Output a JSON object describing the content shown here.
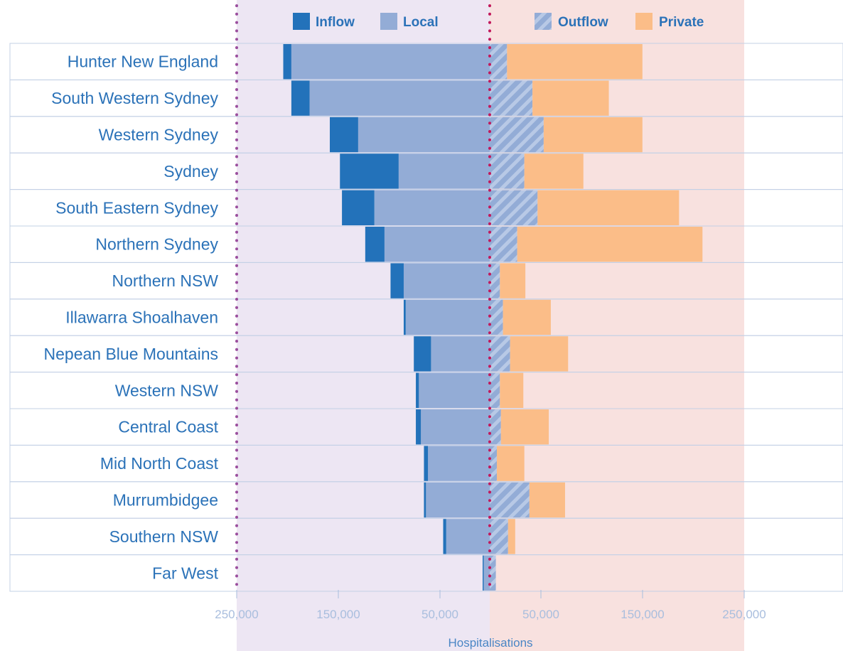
{
  "chart_data": {
    "type": "bar",
    "orientation": "horizontal-diverging",
    "categories": [
      "Hunter New England",
      "South Western Sydney",
      "Western Sydney",
      "Sydney",
      "South Eastern Sydney",
      "Northern Sydney",
      "Northern NSW",
      "Illawarra Shoalhaven",
      "Nepean Blue Mountains",
      "Western NSW",
      "Central Coast",
      "Mid North Coast",
      "Murrumbidgee",
      "Southern NSW",
      "Far West"
    ],
    "series": [
      {
        "name": "Inflow",
        "side": "left",
        "color": "#2372ba",
        "values": [
          8000,
          18000,
          28000,
          58000,
          32000,
          19000,
          13000,
          2000,
          17000,
          3000,
          5000,
          4000,
          2000,
          3000,
          1000
        ]
      },
      {
        "name": "Local",
        "side": "left",
        "color": "#93acd6",
        "values": [
          196000,
          178000,
          130000,
          90000,
          114000,
          104000,
          85000,
          83000,
          58000,
          70000,
          68000,
          61000,
          63000,
          43000,
          6000
        ]
      },
      {
        "name": "Outflow",
        "side": "right",
        "color": "#93acd6",
        "pattern": "hatched",
        "values": [
          17000,
          42000,
          53000,
          34000,
          47000,
          27000,
          10000,
          13000,
          20000,
          10000,
          11000,
          7000,
          39000,
          18000,
          6000
        ]
      },
      {
        "name": "Private",
        "side": "right",
        "color": "#fbbd88",
        "values": [
          133000,
          75000,
          97000,
          58000,
          139000,
          182000,
          25000,
          47000,
          57000,
          23000,
          47000,
          27000,
          35000,
          7000,
          0
        ]
      }
    ],
    "x_ticks": [
      "250,000",
      "150,000",
      "50,000",
      "50,000",
      "150,000",
      "250,000"
    ],
    "xlim_left": [
      0,
      250000
    ],
    "xlim_right": [
      0,
      250000
    ],
    "xlabel": "Hospitalisations",
    "legend_position": "top",
    "colors": {
      "left_background": "#ede6f3",
      "right_background": "#f8e1df",
      "left_dotted_line": "#9b4f9e",
      "center_dotted_line": "#c2185b",
      "label_text": "#2b72b8",
      "tick_text": "#a9bede",
      "row_border": "#c3d0e6"
    }
  }
}
